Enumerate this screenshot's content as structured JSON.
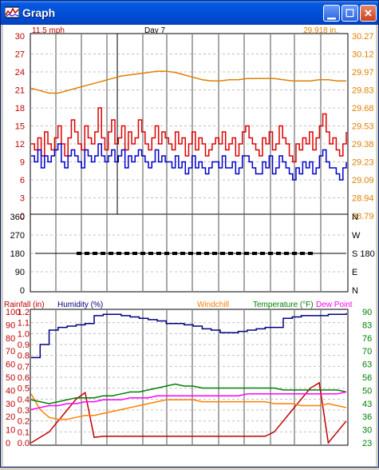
{
  "window": {
    "title": "Graph"
  },
  "top_panel": {
    "header_left": "11.5 mph",
    "header_center": "Day 7",
    "header_right": "29.918 in.",
    "left_ticks": [
      "30",
      "27",
      "24",
      "21",
      "18",
      "15",
      "12",
      "9",
      "6",
      "3",
      "0"
    ],
    "right_ticks": [
      "30.27",
      "30.12",
      "29.97",
      "29.83",
      "29.68",
      "29.53",
      "29.38",
      "29.23",
      "29.09",
      "28.94",
      "28.79"
    ]
  },
  "mid_panel": {
    "left_ticks": [
      "360",
      "270",
      "180",
      "90",
      "0"
    ],
    "right_ticks": [
      "N",
      "W",
      "S 180",
      "E",
      "N"
    ]
  },
  "bottom_panel": {
    "legend": {
      "rainfall": "Rainfall (in)",
      "humidity": "Humidity (%)",
      "windchill": "Windchill",
      "temperature": "Temperature (°F)",
      "dewpoint": "Dew Point"
    },
    "humidity_ticks": [
      "100",
      "90",
      "80",
      "70",
      "60",
      "50",
      "40",
      "30",
      "20",
      "10",
      "0"
    ],
    "rain_ticks": [
      "1.2",
      "1.1",
      "1.0",
      "0.9",
      "0.8",
      "0.7",
      "0.6",
      "0.5",
      "0.4",
      "0.3",
      "0.2",
      "0.1",
      "0.0"
    ],
    "temp_ticks": [
      "90",
      "83",
      "76",
      "70",
      "63",
      "56",
      "50",
      "43",
      "36",
      "30",
      "23"
    ]
  },
  "colors": {
    "wind": "#e00000",
    "gust": "#0000cc",
    "pressure": "#e08000",
    "rain": "#c00000",
    "humidity": "#000080",
    "windchill": "#ff8000",
    "temperature": "#008000",
    "dewpoint": "#ff00ff",
    "grid": "#a0a0a0",
    "titlebar": "#0050d8"
  },
  "chart_data": [
    {
      "type": "line",
      "title": "",
      "ylim": [
        0,
        30
      ],
      "y2lim": [
        28.79,
        30.27
      ],
      "series": [
        {
          "name": "",
          "axis": "left",
          "values": [
            12,
            11,
            13,
            10,
            14,
            12,
            11,
            13,
            15,
            12,
            10,
            13,
            16,
            14,
            12,
            11,
            15,
            13,
            12,
            14,
            18,
            13,
            11,
            14,
            16,
            12,
            13,
            15,
            11,
            14,
            12,
            13,
            16,
            14,
            12,
            11,
            13,
            15,
            12,
            14,
            13,
            12,
            11,
            14,
            12,
            13,
            10,
            12,
            14,
            11,
            13,
            12,
            10,
            11,
            12,
            13,
            12,
            14,
            11,
            12,
            13,
            10,
            12,
            14,
            15,
            13,
            12,
            11,
            10,
            13,
            12,
            14,
            11,
            12,
            15,
            13,
            12,
            10,
            9,
            12,
            11,
            13,
            12,
            14,
            11,
            13,
            15,
            17,
            14,
            12,
            13,
            11,
            10,
            12,
            14
          ]
        },
        {
          "name": "",
          "axis": "left",
          "values": [
            10,
            9,
            11,
            8,
            10,
            9,
            10,
            11,
            12,
            9,
            8,
            10,
            11,
            10,
            9,
            8,
            11,
            10,
            9,
            10,
            12,
            10,
            9,
            10,
            11,
            9,
            10,
            11,
            8,
            10,
            9,
            10,
            11,
            10,
            9,
            8,
            9,
            11,
            9,
            10,
            9,
            9,
            8,
            10,
            8,
            9,
            7,
            8,
            10,
            8,
            9,
            8,
            7,
            8,
            9,
            9,
            8,
            10,
            8,
            8,
            9,
            7,
            8,
            10,
            10,
            9,
            8,
            7,
            7,
            9,
            8,
            10,
            7,
            8,
            10,
            9,
            8,
            7,
            6,
            8,
            7,
            9,
            8,
            9,
            7,
            8,
            10,
            11,
            9,
            8,
            8,
            7,
            6,
            8,
            9
          ]
        },
        {
          "name": "",
          "axis": "right",
          "values": [
            29.84,
            29.82,
            29.8,
            29.8,
            29.82,
            29.84,
            29.86,
            29.88,
            29.9,
            29.92,
            29.94,
            29.95,
            29.96,
            29.97,
            29.98,
            29.98,
            29.97,
            29.95,
            29.93,
            29.91,
            29.9,
            29.9,
            29.91,
            29.91,
            29.92,
            29.92,
            29.92,
            29.92,
            29.91,
            29.9,
            29.9,
            29.9,
            29.91,
            29.91,
            29.9,
            29.9
          ]
        }
      ]
    },
    {
      "type": "scatter",
      "title": "",
      "ylim": [
        0,
        360
      ],
      "series": [
        {
          "name": "",
          "values": [
            180,
            180,
            180,
            180,
            180,
            180,
            180,
            180,
            180,
            180,
            180,
            180,
            180,
            180,
            180,
            180,
            180,
            180,
            180,
            180,
            180,
            180,
            180,
            180,
            180,
            180,
            180,
            180,
            180,
            180
          ]
        }
      ]
    },
    {
      "type": "line",
      "title": "",
      "ylim": [
        0,
        100
      ],
      "y2lim": [
        0.0,
        1.2
      ],
      "y3lim": [
        23,
        90
      ],
      "series": [
        {
          "name": "Humidity (%)",
          "axis": "humidity",
          "values": [
            65,
            75,
            86,
            88,
            89,
            90,
            91,
            97,
            98,
            98,
            97,
            96,
            95,
            94,
            93,
            91,
            91,
            90,
            89,
            87,
            86,
            84,
            84,
            85,
            86,
            87,
            88,
            88,
            95,
            96,
            97,
            97,
            97,
            98,
            98,
            99
          ]
        },
        {
          "name": "Rainfall (in)",
          "axis": "rain",
          "values": [
            0.0,
            0.05,
            0.1,
            0.2,
            0.3,
            0.4,
            0.46,
            0.05,
            0.06,
            0.06,
            0.06,
            0.06,
            0.06,
            0.06,
            0.06,
            0.06,
            0.06,
            0.06,
            0.06,
            0.06,
            0.06,
            0.06,
            0.06,
            0.06,
            0.06,
            0.06,
            0.06,
            0.1,
            0.2,
            0.3,
            0.4,
            0.5,
            0.55,
            0.0,
            0.1,
            0.2
          ]
        },
        {
          "name": "Windchill",
          "axis": "temp",
          "values": [
            48,
            40,
            36,
            35,
            35,
            36,
            37,
            37,
            38,
            39,
            40,
            41,
            42,
            43,
            44,
            45,
            45,
            45,
            45,
            44,
            44,
            44,
            44,
            44,
            44,
            44,
            44,
            43,
            43,
            43,
            42,
            42,
            42,
            43,
            42,
            41
          ]
        },
        {
          "name": "Temperature (°F)",
          "axis": "temp",
          "values": [
            45,
            44,
            43,
            44,
            45,
            46,
            46,
            46,
            47,
            47,
            48,
            49,
            49,
            50,
            51,
            52,
            53,
            52,
            52,
            51,
            51,
            51,
            51,
            51,
            51,
            51,
            51,
            51,
            50,
            50,
            50,
            50,
            50,
            50,
            50,
            49
          ]
        },
        {
          "name": "Dew Point",
          "axis": "temp",
          "values": [
            40,
            41,
            42,
            42,
            43,
            43,
            44,
            44,
            45,
            45,
            45,
            46,
            46,
            46,
            47,
            47,
            47,
            47,
            47,
            47,
            47,
            47,
            47,
            47,
            48,
            48,
            48,
            48,
            48,
            48,
            48,
            48,
            48,
            48,
            48,
            49
          ]
        }
      ]
    }
  ]
}
